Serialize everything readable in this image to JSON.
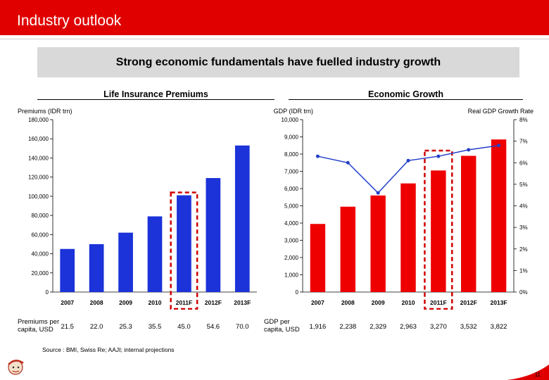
{
  "header": {
    "title": "Industry outlook",
    "color": "#e00000"
  },
  "banner": {
    "text": "Strong economic fundamentals have fuelled industry growth"
  },
  "left_section_title": "Life Insurance Premiums",
  "right_section_title": "Economic Growth",
  "left_table": {
    "label": "Premiums per capita, USD",
    "values": [
      "21.5",
      "22.0",
      "25.3",
      "35.5",
      "45.0",
      "54.6",
      "70.0"
    ]
  },
  "right_table": {
    "label": "GDP per capita, USD",
    "values": [
      "1,916",
      "2,238",
      "2,329",
      "2,963",
      "3,270",
      "3,532",
      "3,822"
    ]
  },
  "source": "Source : BMI, Swiss Re; AAJI; internal projections",
  "page_number": "11",
  "colors": {
    "blue_bar": "#1b33d9",
    "red_bar": "#ee0000",
    "line": "#2440c8",
    "highlight": "#d00000"
  },
  "chart_data": [
    {
      "type": "bar",
      "ylabel": "Premiums (IDR trn)",
      "categories": [
        "2007",
        "2008",
        "2009",
        "2010",
        "2011F",
        "2012F",
        "2013F"
      ],
      "values": [
        45000,
        50000,
        62000,
        79000,
        101000,
        119000,
        153000
      ],
      "ylim": [
        0,
        180000
      ],
      "yticks": [
        "0",
        "20,000",
        "40,000",
        "60,000",
        "80,000",
        "100,000",
        "120,000",
        "140,000",
        "160,000",
        "180,000"
      ],
      "highlight_category": "2011F",
      "grid": false
    },
    {
      "type": "bar",
      "ylabel": "GDP (IDR trn)",
      "y2label": "Real GDP Growth Rate",
      "categories": [
        "2007",
        "2008",
        "2009",
        "2010",
        "2011F",
        "2012F",
        "2013F"
      ],
      "values": [
        3950,
        4950,
        5600,
        6300,
        7050,
        7900,
        8850
      ],
      "ylim": [
        0,
        10000
      ],
      "yticks": [
        "0",
        "1,000",
        "2,000",
        "3,000",
        "4,000",
        "5,000",
        "6,000",
        "7,000",
        "8,000",
        "9,000",
        "10,000"
      ],
      "line": {
        "values": [
          6.3,
          6.0,
          4.6,
          6.1,
          6.3,
          6.6,
          6.8
        ],
        "ylim": [
          0,
          8
        ]
      },
      "y2ticks": [
        "0%",
        "1%",
        "2%",
        "3%",
        "4%",
        "5%",
        "6%",
        "7%",
        "8%"
      ],
      "highlight_category": "2011F",
      "grid": false
    }
  ]
}
